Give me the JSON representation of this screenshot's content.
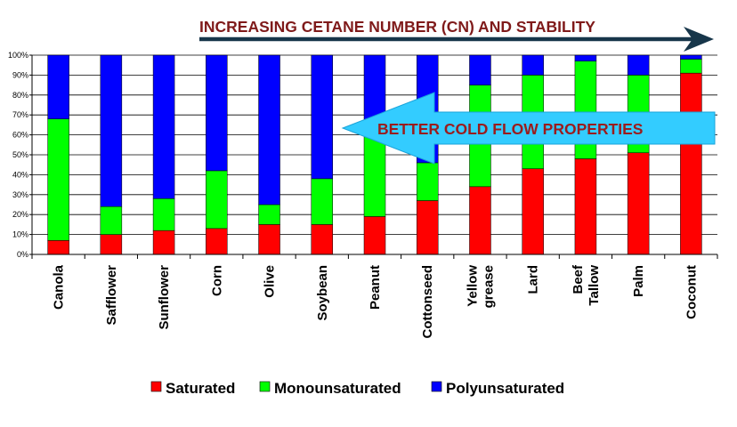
{
  "colors": {
    "saturated": "#ff0000",
    "monounsaturated": "#00ff00",
    "polyunsaturated": "#0000ff",
    "top_arrow": "#17364a",
    "title_text": "#7f1a1a",
    "cold_arrow": "#33ccff"
  },
  "annotations": {
    "top_arrow_text": "INCREASING CETANE NUMBER (CN) AND STABILITY",
    "cold_arrow_text": "BETTER COLD FLOW PROPERTIES"
  },
  "chart_data": {
    "type": "bar",
    "stacked": true,
    "categories": [
      "Canola",
      "Safflower",
      "Sunflower",
      "Corn",
      "Olive",
      "Soybean",
      "Peanut",
      "Cottonseed",
      "Yellow grease",
      "Lard",
      "Beef Tallow",
      "Palm",
      "Coconut"
    ],
    "category_lines": [
      [
        "Canola"
      ],
      [
        "Safflower"
      ],
      [
        "Sunflower"
      ],
      [
        "Corn"
      ],
      [
        "Olive"
      ],
      [
        "Soybean"
      ],
      [
        "Peanut"
      ],
      [
        "Cottonseed"
      ],
      [
        "Yellow",
        "grease"
      ],
      [
        "Lard"
      ],
      [
        "Beef",
        "Tallow"
      ],
      [
        "Palm"
      ],
      [
        "Coconut"
      ]
    ],
    "series": [
      {
        "name": "Saturated",
        "color": "#ff0000",
        "values": [
          7,
          10,
          12,
          13,
          15,
          15,
          19,
          27,
          34,
          43,
          48,
          51,
          91
        ]
      },
      {
        "name": "Monounsaturated",
        "color": "#00ff00",
        "values": [
          61,
          14,
          16,
          29,
          10,
          23,
          46,
          19,
          51,
          47,
          49,
          39,
          7
        ]
      },
      {
        "name": "Polyunsaturated",
        "color": "#0000ff",
        "values": [
          32,
          76,
          72,
          58,
          75,
          62,
          35,
          54,
          15,
          10,
          3,
          10,
          2
        ]
      }
    ],
    "ylim": [
      0,
      100
    ],
    "yticks": [
      "0%",
      "10%",
      "20%",
      "30%",
      "40%",
      "50%",
      "60%",
      "70%",
      "80%",
      "90%",
      "100%"
    ],
    "grid": true,
    "legend_position": "bottom"
  }
}
